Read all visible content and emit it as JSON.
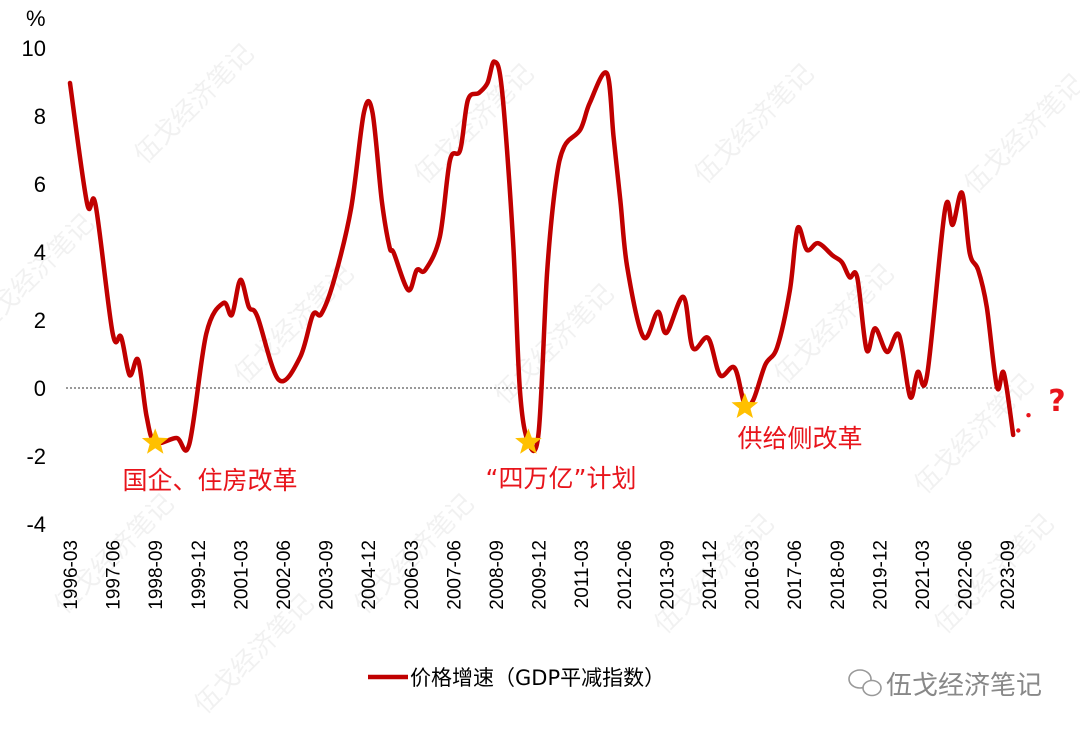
{
  "chart_data": {
    "type": "line",
    "ylabel": "%",
    "ylim": [
      -4,
      10
    ],
    "yticks": [
      10,
      8,
      6,
      4,
      2,
      0,
      -2,
      -4
    ],
    "xtick_labels": [
      "1996-03",
      "1997-06",
      "1998-09",
      "1999-12",
      "2001-03",
      "2002-06",
      "2003-09",
      "2004-12",
      "2006-03",
      "2007-06",
      "2008-09",
      "2009-12",
      "2011-03",
      "2012-06",
      "2013-09",
      "2014-12",
      "2016-03",
      "2017-06",
      "2018-09",
      "2019-12",
      "2021-03",
      "2022-06",
      "2023-09"
    ],
    "xtick_step_quarters": 5,
    "reference_line": 0,
    "series": [
      {
        "name": "价格增速（GDP平减指数）",
        "color": "#c00000",
        "points_quarter_index_from_1996_03": [
          [
            0,
            8.97
          ],
          [
            2,
            5.44
          ],
          [
            3,
            5.38
          ],
          [
            5,
            1.62
          ],
          [
            6,
            1.5
          ],
          [
            7,
            0.38
          ],
          [
            8,
            0.82
          ],
          [
            9,
            -0.85
          ],
          [
            10,
            -1.6
          ],
          [
            12.5,
            -1.47
          ],
          [
            14,
            -1.65
          ],
          [
            16,
            1.6
          ],
          [
            18,
            2.5
          ],
          [
            19,
            2.15
          ],
          [
            20,
            3.18
          ],
          [
            21,
            2.38
          ],
          [
            22,
            2.1
          ],
          [
            24.5,
            0.24
          ],
          [
            27,
            0.9
          ],
          [
            28.5,
            2.15
          ],
          [
            29.5,
            2.18
          ],
          [
            31,
            3.18
          ],
          [
            33,
            5.3
          ],
          [
            34.5,
            8.1
          ],
          [
            35.5,
            8.1
          ],
          [
            36.6,
            5.5
          ],
          [
            37.5,
            4.15
          ],
          [
            38,
            3.97
          ],
          [
            39.7,
            2.88
          ],
          [
            40.7,
            3.47
          ],
          [
            41.7,
            3.47
          ],
          [
            43.4,
            4.44
          ],
          [
            44.6,
            6.7
          ],
          [
            45.8,
            7.0
          ],
          [
            46.7,
            8.47
          ],
          [
            48,
            8.68
          ],
          [
            49,
            8.97
          ],
          [
            49.8,
            9.6
          ],
          [
            50.7,
            8.76
          ],
          [
            52,
            4.35
          ],
          [
            52.8,
            -0.06
          ],
          [
            53.8,
            -1.6
          ],
          [
            55,
            -1.32
          ],
          [
            56,
            3.4
          ],
          [
            57,
            6.0
          ],
          [
            58,
            7.1
          ],
          [
            59.9,
            7.6
          ],
          [
            61,
            8.38
          ],
          [
            63,
            9.26
          ],
          [
            63.8,
            7.38
          ],
          [
            64.6,
            5.5
          ],
          [
            65.4,
            3.56
          ],
          [
            67.3,
            1.5
          ],
          [
            69,
            2.24
          ],
          [
            70,
            1.62
          ],
          [
            72,
            2.68
          ],
          [
            73.1,
            1.18
          ],
          [
            74.9,
            1.47
          ],
          [
            76.3,
            0.38
          ],
          [
            78,
            0.59
          ],
          [
            79.2,
            -0.5
          ],
          [
            80.2,
            -0.35
          ],
          [
            81.6,
            0.68
          ],
          [
            83,
            1.2
          ],
          [
            84.5,
            2.88
          ],
          [
            85.4,
            4.7
          ],
          [
            86.5,
            4.06
          ],
          [
            87.8,
            4.26
          ],
          [
            89.5,
            3.9
          ],
          [
            90.6,
            3.7
          ],
          [
            91.5,
            3.26
          ],
          [
            92.4,
            3.26
          ],
          [
            93.5,
            1.12
          ],
          [
            94.5,
            1.76
          ],
          [
            95.9,
            1.06
          ],
          [
            97.3,
            1.56
          ],
          [
            98.6,
            -0.26
          ],
          [
            99.5,
            0.47
          ],
          [
            100.6,
            0.38
          ],
          [
            102.7,
            5.24
          ],
          [
            103.6,
            4.8
          ],
          [
            104.7,
            5.74
          ],
          [
            105.6,
            3.97
          ],
          [
            106.6,
            3.47
          ],
          [
            107.6,
            2.38
          ],
          [
            108.8,
            0.03
          ],
          [
            109.6,
            0.44
          ],
          [
            110.7,
            -1.38
          ]
        ],
        "projection_points_quarter_index_from_1996_03": [
          [
            111.3,
            -1.25
          ],
          [
            112.5,
            -0.8
          ]
        ]
      }
    ],
    "annotations": [
      {
        "text": "国企、住房改革",
        "star_at": [
          10,
          -1.6
        ]
      },
      {
        "text": "“四万亿”计划",
        "star_at": [
          53.8,
          -1.6
        ]
      },
      {
        "text": "供给侧改革",
        "star_at": [
          79.2,
          -0.55
        ]
      },
      {
        "text": "?"
      }
    ],
    "star_color": "#ffc000",
    "annotation_color": "#e8141b",
    "legend": {
      "label": "价格增速（GDP平减指数）",
      "placement": "bottom"
    }
  },
  "watermark": "伍戈经济笔记",
  "logo_text": "伍戈经济笔记"
}
